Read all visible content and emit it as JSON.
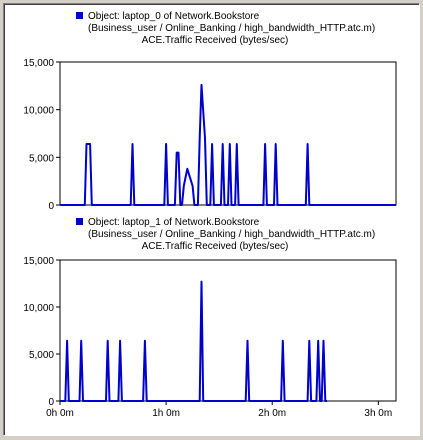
{
  "colors": {
    "series": "#0000cc",
    "plot_border": "#000000",
    "background": "#ffffff"
  },
  "chart_data": [
    {
      "type": "line",
      "legend_line1": "Object: laptop_0 of Network.Bookstore",
      "legend_line2": "(Business_user / Online_Banking / high_bandwidth_HTTP.atc.m)",
      "title": "ACE.Traffic Received (bytes/sec)",
      "ylim": [
        0,
        15000
      ],
      "yticks": [
        {
          "value": 0,
          "label": "0"
        },
        {
          "value": 5000,
          "label": "5,000"
        },
        {
          "value": 10000,
          "label": "10,000"
        },
        {
          "value": 15000,
          "label": "15,000"
        }
      ],
      "xlim_minutes": [
        0,
        190
      ],
      "series": [
        {
          "x_minutes": [
            0,
            14,
            15,
            16,
            17,
            18,
            40,
            41,
            42,
            59,
            60,
            61,
            62,
            65,
            66,
            67,
            68,
            69,
            70,
            72,
            75,
            76,
            77,
            78,
            79,
            80,
            82,
            83,
            84,
            85,
            86,
            87,
            88,
            90,
            91,
            92,
            93,
            94,
            95,
            96,
            97,
            98,
            99,
            100,
            101,
            102,
            103,
            104,
            114,
            115,
            116,
            117,
            118,
            120,
            121,
            122,
            123,
            124,
            138,
            139,
            140,
            141,
            142,
            190
          ],
          "y": [
            0,
            0,
            6400,
            6400,
            6400,
            0,
            0,
            6400,
            0,
            0,
            6400,
            0,
            0,
            0,
            5500,
            5500,
            0,
            0,
            2000,
            3800,
            2000,
            0,
            0,
            0,
            7000,
            12600,
            7000,
            0,
            0,
            0,
            6400,
            0,
            0,
            0,
            0,
            6400,
            0,
            0,
            0,
            6400,
            0,
            0,
            0,
            6400,
            0,
            0,
            0,
            0,
            0,
            0,
            6400,
            0,
            0,
            0,
            0,
            6400,
            0,
            0,
            0,
            0,
            6400,
            0,
            0,
            0
          ]
        }
      ]
    },
    {
      "type": "line",
      "legend_line1": "Object: laptop_1 of Network.Bookstore",
      "legend_line2": "(Business_user / Online_Banking / high_bandwidth_HTTP.atc.m)",
      "title": "ACE.Traffic Received (bytes/sec)",
      "ylim": [
        0,
        15000
      ],
      "yticks": [
        {
          "value": 0,
          "label": "0"
        },
        {
          "value": 5000,
          "label": "5,000"
        },
        {
          "value": 10000,
          "label": "10,000"
        },
        {
          "value": 15000,
          "label": "15,000"
        }
      ],
      "xlim_minutes": [
        0,
        190
      ],
      "xticks": [
        {
          "value": 0,
          "label": "0h 0m"
        },
        {
          "value": 60,
          "label": "1h 0m"
        },
        {
          "value": 120,
          "label": "2h 0m"
        },
        {
          "value": 180,
          "label": "3h 0m"
        }
      ],
      "series": [
        {
          "x_minutes": [
            0,
            3,
            4,
            5,
            11,
            12,
            13,
            26,
            27,
            28,
            33,
            34,
            35,
            47,
            48,
            49,
            79,
            80,
            81,
            105,
            106,
            107,
            125,
            126,
            127,
            140,
            141,
            142,
            145,
            146,
            147,
            148,
            149,
            150,
            151
          ],
          "y": [
            0,
            0,
            6400,
            0,
            0,
            6400,
            0,
            0,
            6400,
            0,
            0,
            6400,
            0,
            0,
            6400,
            0,
            0,
            12700,
            0,
            0,
            6400,
            0,
            0,
            6400,
            0,
            0,
            6400,
            0,
            0,
            6400,
            0,
            0,
            6400,
            0,
            0
          ]
        }
      ]
    }
  ]
}
